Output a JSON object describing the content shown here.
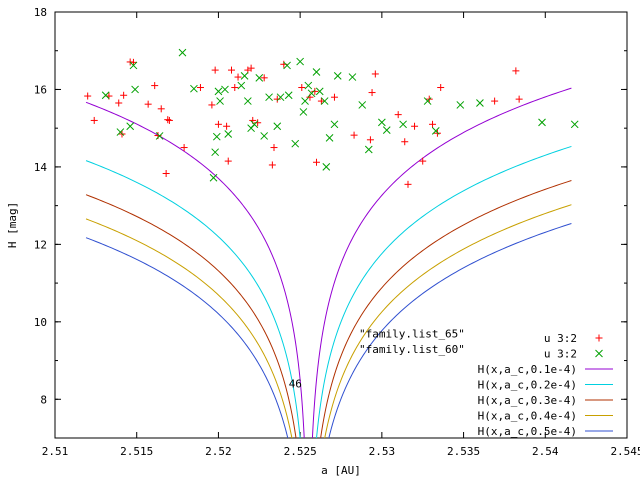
{
  "chart_data": {
    "type": "scatter",
    "xlabel": "a [AU]",
    "ylabel": "H [mag]",
    "xlim": [
      2.51,
      2.545
    ],
    "ylim": [
      7,
      18
    ],
    "xticks": [
      "2.51",
      "2.515",
      "2.52",
      "2.525",
      "2.53",
      "2.535",
      "2.54",
      "2.545"
    ],
    "yticks": [
      "8",
      "10",
      "12",
      "14",
      "16",
      "18"
    ],
    "grid": false,
    "legend_position": "bottom-right",
    "annotations": [
      {
        "text": "\"family.list_65\"",
        "x": 2.5286,
        "y": 9.6
      },
      {
        "text": "\"family.list_60\"",
        "x": 2.5286,
        "y": 9.2
      },
      {
        "text": "46",
        "x": 2.5243,
        "y": 8.3
      }
    ],
    "series": [
      {
        "name": "u 3:2",
        "kind": "points",
        "marker": "plus",
        "color": "#ff0000",
        "points": [
          [
            2.512,
            15.83
          ],
          [
            2.5124,
            15.2
          ],
          [
            2.5133,
            15.83
          ],
          [
            2.5139,
            15.65
          ],
          [
            2.5141,
            14.85
          ],
          [
            2.5142,
            15.85
          ],
          [
            2.5146,
            16.71
          ],
          [
            2.5148,
            16.7
          ],
          [
            2.5157,
            15.62
          ],
          [
            2.5161,
            16.1
          ],
          [
            2.5163,
            14.81
          ],
          [
            2.5165,
            15.5
          ],
          [
            2.5168,
            13.83
          ],
          [
            2.5169,
            15.22
          ],
          [
            2.517,
            15.2
          ],
          [
            2.5179,
            14.5
          ],
          [
            2.5189,
            16.05
          ],
          [
            2.5196,
            15.6
          ],
          [
            2.5198,
            16.5
          ],
          [
            2.52,
            15.1
          ],
          [
            2.5205,
            15.05
          ],
          [
            2.5206,
            14.15
          ],
          [
            2.5208,
            16.5
          ],
          [
            2.521,
            16.05
          ],
          [
            2.5212,
            16.32
          ],
          [
            2.5218,
            16.5
          ],
          [
            2.522,
            16.55
          ],
          [
            2.5221,
            15.2
          ],
          [
            2.5224,
            15.14
          ],
          [
            2.5228,
            16.3
          ],
          [
            2.5233,
            14.05
          ],
          [
            2.5234,
            14.5
          ],
          [
            2.5236,
            15.75
          ],
          [
            2.524,
            16.65
          ],
          [
            2.5251,
            16.05
          ],
          [
            2.5256,
            15.8
          ],
          [
            2.5259,
            15.95
          ],
          [
            2.526,
            14.12
          ],
          [
            2.5263,
            15.7
          ],
          [
            2.5271,
            15.8
          ],
          [
            2.5283,
            14.82
          ],
          [
            2.5293,
            14.7
          ],
          [
            2.5294,
            15.92
          ],
          [
            2.5296,
            16.4
          ],
          [
            2.531,
            15.35
          ],
          [
            2.5314,
            14.65
          ],
          [
            2.5316,
            13.55
          ],
          [
            2.532,
            15.05
          ],
          [
            2.5325,
            14.15
          ],
          [
            2.5329,
            15.75
          ],
          [
            2.5331,
            15.1
          ],
          [
            2.5334,
            14.87
          ],
          [
            2.5336,
            16.05
          ],
          [
            2.5369,
            15.7
          ],
          [
            2.5382,
            16.48
          ],
          [
            2.5384,
            15.75
          ]
        ]
      },
      {
        "name": "u 3:2",
        "kind": "points",
        "marker": "cross",
        "color": "#00a000",
        "points": [
          [
            2.5131,
            15.85
          ],
          [
            2.514,
            14.9
          ],
          [
            2.5146,
            15.05
          ],
          [
            2.5148,
            16.62
          ],
          [
            2.5149,
            16.0
          ],
          [
            2.5164,
            14.8
          ],
          [
            2.5178,
            16.95
          ],
          [
            2.5185,
            16.02
          ],
          [
            2.5197,
            13.72
          ],
          [
            2.5198,
            14.38
          ],
          [
            2.5199,
            14.78
          ],
          [
            2.52,
            15.95
          ],
          [
            2.5201,
            15.7
          ],
          [
            2.5204,
            16.0
          ],
          [
            2.5206,
            14.85
          ],
          [
            2.5214,
            16.1
          ],
          [
            2.5216,
            16.35
          ],
          [
            2.5218,
            15.7
          ],
          [
            2.522,
            15.0
          ],
          [
            2.5222,
            15.1
          ],
          [
            2.5225,
            16.3
          ],
          [
            2.5228,
            14.8
          ],
          [
            2.5231,
            15.8
          ],
          [
            2.5236,
            15.05
          ],
          [
            2.5238,
            15.8
          ],
          [
            2.5242,
            16.62
          ],
          [
            2.5243,
            15.85
          ],
          [
            2.5247,
            14.6
          ],
          [
            2.525,
            16.72
          ],
          [
            2.5252,
            15.42
          ],
          [
            2.5253,
            15.7
          ],
          [
            2.5255,
            16.1
          ],
          [
            2.5257,
            15.9
          ],
          [
            2.526,
            16.45
          ],
          [
            2.5262,
            15.95
          ],
          [
            2.5265,
            15.7
          ],
          [
            2.5266,
            14.0
          ],
          [
            2.5268,
            14.75
          ],
          [
            2.5271,
            15.1
          ],
          [
            2.5273,
            16.35
          ],
          [
            2.5282,
            16.32
          ],
          [
            2.5288,
            15.6
          ],
          [
            2.5292,
            14.45
          ],
          [
            2.53,
            15.15
          ],
          [
            2.5303,
            14.95
          ],
          [
            2.5313,
            15.1
          ],
          [
            2.5328,
            15.7
          ],
          [
            2.5333,
            14.93
          ],
          [
            2.5348,
            15.6
          ],
          [
            2.536,
            15.65
          ],
          [
            2.5398,
            15.15
          ],
          [
            2.5418,
            15.1
          ]
        ]
      },
      {
        "name": "H(x,a_c,0.1e-4)",
        "kind": "curve",
        "color": "#9400d3",
        "C": 1e-05
      },
      {
        "name": "H(x,a_c,0.2e-4)",
        "kind": "curve",
        "color": "#00d0e0",
        "C": 2e-05
      },
      {
        "name": "H(x,a_c,0.3e-4)",
        "kind": "curve",
        "color": "#b03000",
        "C": 3e-05
      },
      {
        "name": "H(x,a_c,0.4e-4)",
        "kind": "curve",
        "color": "#c8a000",
        "C": 4e-05
      },
      {
        "name": "H(x,a_c,0.5e-4)",
        "kind": "curve",
        "color": "#3050d0",
        "C": 5e-05
      }
    ]
  }
}
